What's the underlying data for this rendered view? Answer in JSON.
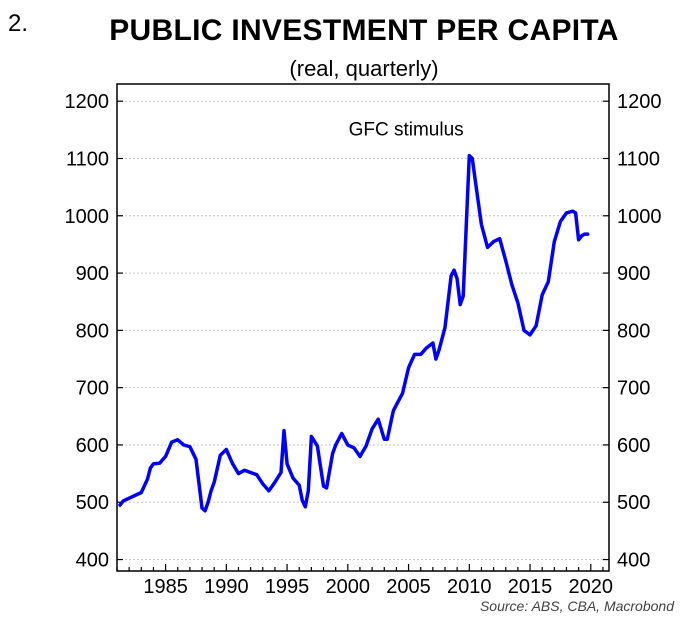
{
  "figure_number": "2.",
  "source": "Source: ABS, CBA, Macrobond",
  "colors": {
    "line": "#0000ff",
    "grid": "#c8c8c8",
    "axis": "#000000"
  },
  "chart_data": {
    "type": "line",
    "title": "PUBLIC INVESTMENT PER CAPITA",
    "subtitle": "(real, quarterly)",
    "xlabel": "",
    "ylabel": "",
    "xlim": [
      1981,
      2021.5
    ],
    "ylim": [
      380,
      1230
    ],
    "y_ticks": [
      400,
      500,
      600,
      700,
      800,
      900,
      1000,
      1100,
      1200
    ],
    "x_ticks": [
      1985,
      1990,
      1995,
      2000,
      2005,
      2010,
      2015,
      2020
    ],
    "grid": true,
    "right_axis_mirror": true,
    "annotation": {
      "text": "GFC stimulus",
      "x": 2004.8,
      "y": 1140
    },
    "series": [
      {
        "x": [
          1981.25,
          1981.5,
          1982,
          1982.5,
          1983,
          1983.5,
          1983.75,
          1984,
          1984.5,
          1985,
          1985.5,
          1986,
          1986.5,
          1987,
          1987.5,
          1988,
          1988.25,
          1988.5,
          1988.75,
          1989,
          1989.5,
          1990,
          1990.5,
          1991,
          1991.5,
          1992,
          1992.5,
          1993,
          1993.5,
          1994,
          1994.5,
          1994.75,
          1995,
          1995.5,
          1996,
          1996.25,
          1996.5,
          1996.75,
          1997,
          1997.5,
          1998,
          1998.25,
          1998.75,
          1999,
          1999.5,
          2000,
          2000.5,
          2001,
          2001.5,
          2002,
          2002.5,
          2003,
          2003.25,
          2003.5,
          2003.75,
          2004,
          2004.5,
          2005,
          2005.5,
          2006,
          2006.5,
          2007,
          2007.25,
          2007.5,
          2008,
          2008.5,
          2008.75,
          2009,
          2009.25,
          2009.5,
          2010,
          2010.25,
          2010.5,
          2011,
          2011.5,
          2012,
          2012.5,
          2013,
          2013.5,
          2014,
          2014.5,
          2015,
          2015.5,
          2016,
          2016.5,
          2017,
          2017.5,
          2018,
          2018.5,
          2018.75,
          2019,
          2019.25,
          2019.5,
          2019.75
        ],
        "y": [
          495,
          502,
          507,
          512,
          517,
          540,
          560,
          567,
          568,
          580,
          605,
          609,
          600,
          597,
          575,
          490,
          485,
          500,
          520,
          535,
          582,
          592,
          568,
          550,
          556,
          552,
          548,
          532,
          520,
          535,
          552,
          625,
          567,
          542,
          530,
          503,
          492,
          520,
          615,
          598,
          528,
          525,
          585,
          600,
          620,
          600,
          595,
          580,
          598,
          628,
          645,
          610,
          610,
          635,
          660,
          670,
          690,
          735,
          758,
          758,
          770,
          778,
          750,
          765,
          805,
          895,
          905,
          890,
          845,
          860,
          1105,
          1100,
          1060,
          985,
          945,
          955,
          960,
          922,
          880,
          848,
          800,
          792,
          808,
          862,
          885,
          955,
          990,
          1005,
          1008,
          1005,
          958,
          965,
          968,
          968
        ]
      }
    ]
  }
}
